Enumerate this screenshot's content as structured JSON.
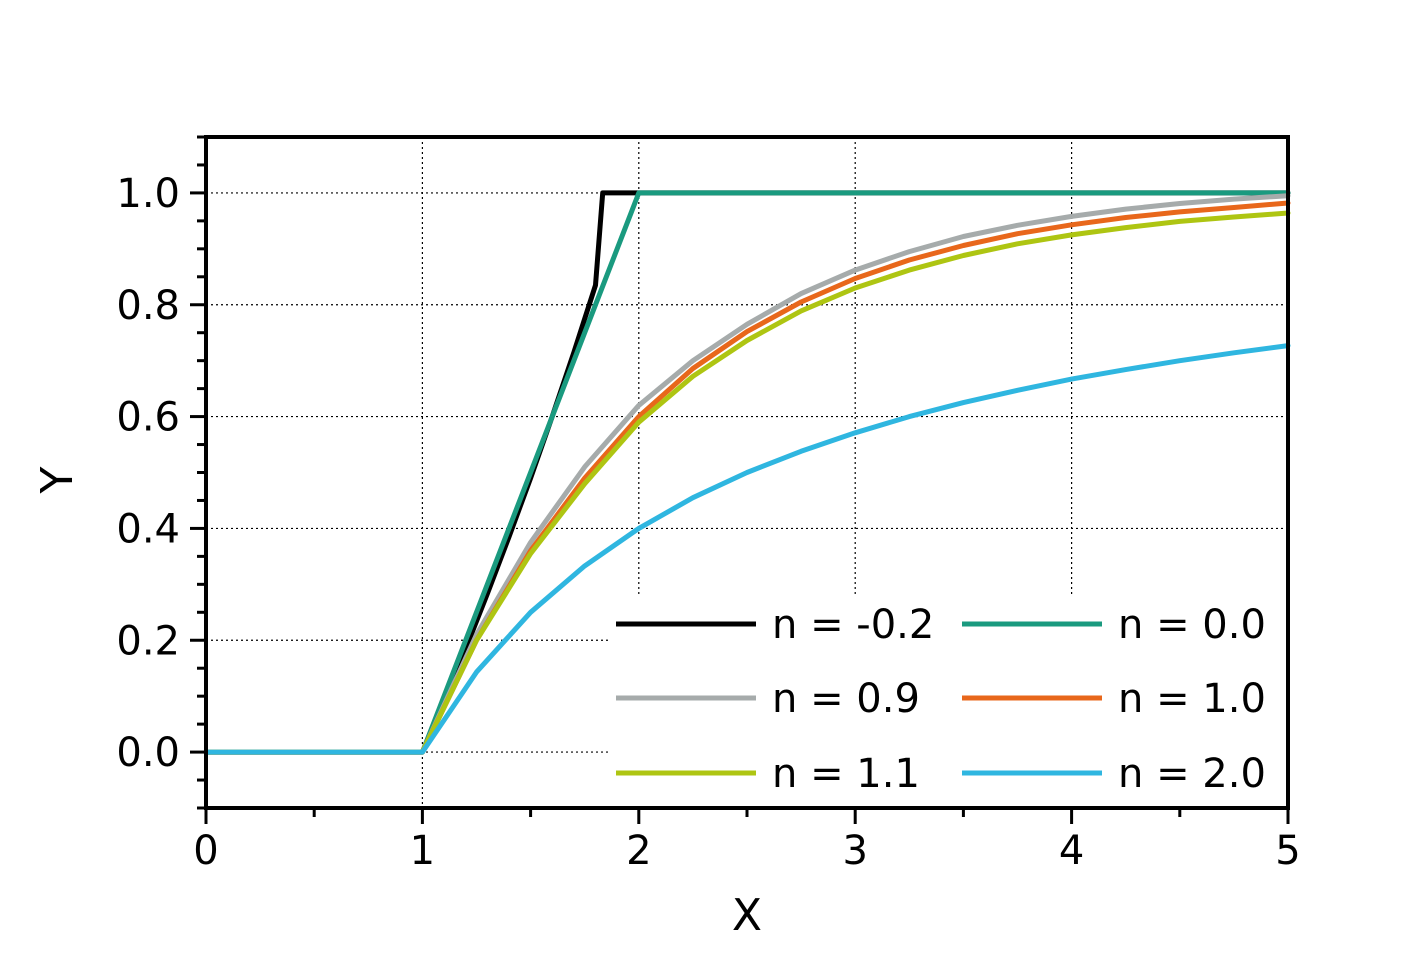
{
  "chart_data": {
    "type": "line",
    "title": "",
    "xlabel": "X",
    "ylabel": "Y",
    "xlim": [
      0,
      5
    ],
    "ylim": [
      -0.1,
      1.1
    ],
    "x_ticks": [
      0,
      1,
      2,
      3,
      4,
      5
    ],
    "x_tick_labels": [
      "0",
      "1",
      "2",
      "3",
      "4",
      "5"
    ],
    "y_ticks": [
      0.0,
      0.2,
      0.4,
      0.6,
      0.8,
      1.0
    ],
    "y_tick_labels": [
      "0.0",
      "0.2",
      "0.4",
      "0.6",
      "0.8",
      "1.0"
    ],
    "grid": true,
    "legend_position": "bottom-right",
    "legend_columns": 2,
    "series": [
      {
        "name": "n = -0.2",
        "color": "#000000",
        "x": [
          0,
          1,
          1.1,
          1.2,
          1.3,
          1.4,
          1.5,
          1.6,
          1.7,
          1.8,
          1.833,
          2.0,
          5.0
        ],
        "y": [
          0,
          0,
          0.091,
          0.185,
          0.283,
          0.385,
          0.49,
          0.6,
          0.715,
          0.835,
          1.0,
          1.0,
          1.0
        ]
      },
      {
        "name": "n = 0.0",
        "color": "#1a9a7f",
        "x": [
          0,
          1,
          2,
          5
        ],
        "y": [
          0,
          0,
          1.0,
          1.0
        ]
      },
      {
        "name": "n = 0.9",
        "color": "#a6abab",
        "x": [
          0,
          1,
          1.25,
          1.5,
          1.75,
          2.0,
          2.25,
          2.5,
          2.75,
          3.0,
          3.25,
          3.5,
          3.75,
          4.0,
          4.25,
          4.5,
          4.75,
          5.0
        ],
        "y": [
          0,
          0,
          0.21,
          0.375,
          0.51,
          0.62,
          0.7,
          0.765,
          0.82,
          0.862,
          0.895,
          0.922,
          0.942,
          0.958,
          0.971,
          0.981,
          0.989,
          0.995
        ]
      },
      {
        "name": "n = 1.0",
        "color": "#e8671b",
        "x": [
          0,
          1,
          1.25,
          1.5,
          1.75,
          2.0,
          2.25,
          2.5,
          2.75,
          3.0,
          3.25,
          3.5,
          3.75,
          4.0,
          4.25,
          4.5,
          4.75,
          5.0
        ],
        "y": [
          0,
          0,
          0.2,
          0.36,
          0.49,
          0.6,
          0.686,
          0.752,
          0.805,
          0.847,
          0.88,
          0.906,
          0.927,
          0.943,
          0.956,
          0.966,
          0.974,
          0.982
        ]
      },
      {
        "name": "n = 1.1",
        "color": "#aec512",
        "x": [
          0,
          1,
          1.25,
          1.5,
          1.75,
          2.0,
          2.25,
          2.5,
          2.75,
          3.0,
          3.25,
          3.5,
          3.75,
          4.0,
          4.25,
          4.5,
          4.75,
          5.0
        ],
        "y": [
          0,
          0,
          0.2,
          0.355,
          0.48,
          0.59,
          0.672,
          0.736,
          0.789,
          0.83,
          0.862,
          0.888,
          0.909,
          0.925,
          0.938,
          0.949,
          0.957,
          0.964
        ]
      },
      {
        "name": "n = 2.0",
        "color": "#2fb6e0",
        "x": [
          0,
          1,
          1.25,
          1.5,
          1.75,
          2.0,
          2.25,
          2.5,
          2.75,
          3.0,
          3.25,
          3.5,
          3.75,
          4.0,
          4.25,
          4.5,
          4.75,
          5.0
        ],
        "y": [
          0,
          0,
          0.143,
          0.25,
          0.333,
          0.4,
          0.455,
          0.5,
          0.538,
          0.571,
          0.6,
          0.625,
          0.647,
          0.667,
          0.684,
          0.7,
          0.714,
          0.727
        ]
      }
    ]
  }
}
